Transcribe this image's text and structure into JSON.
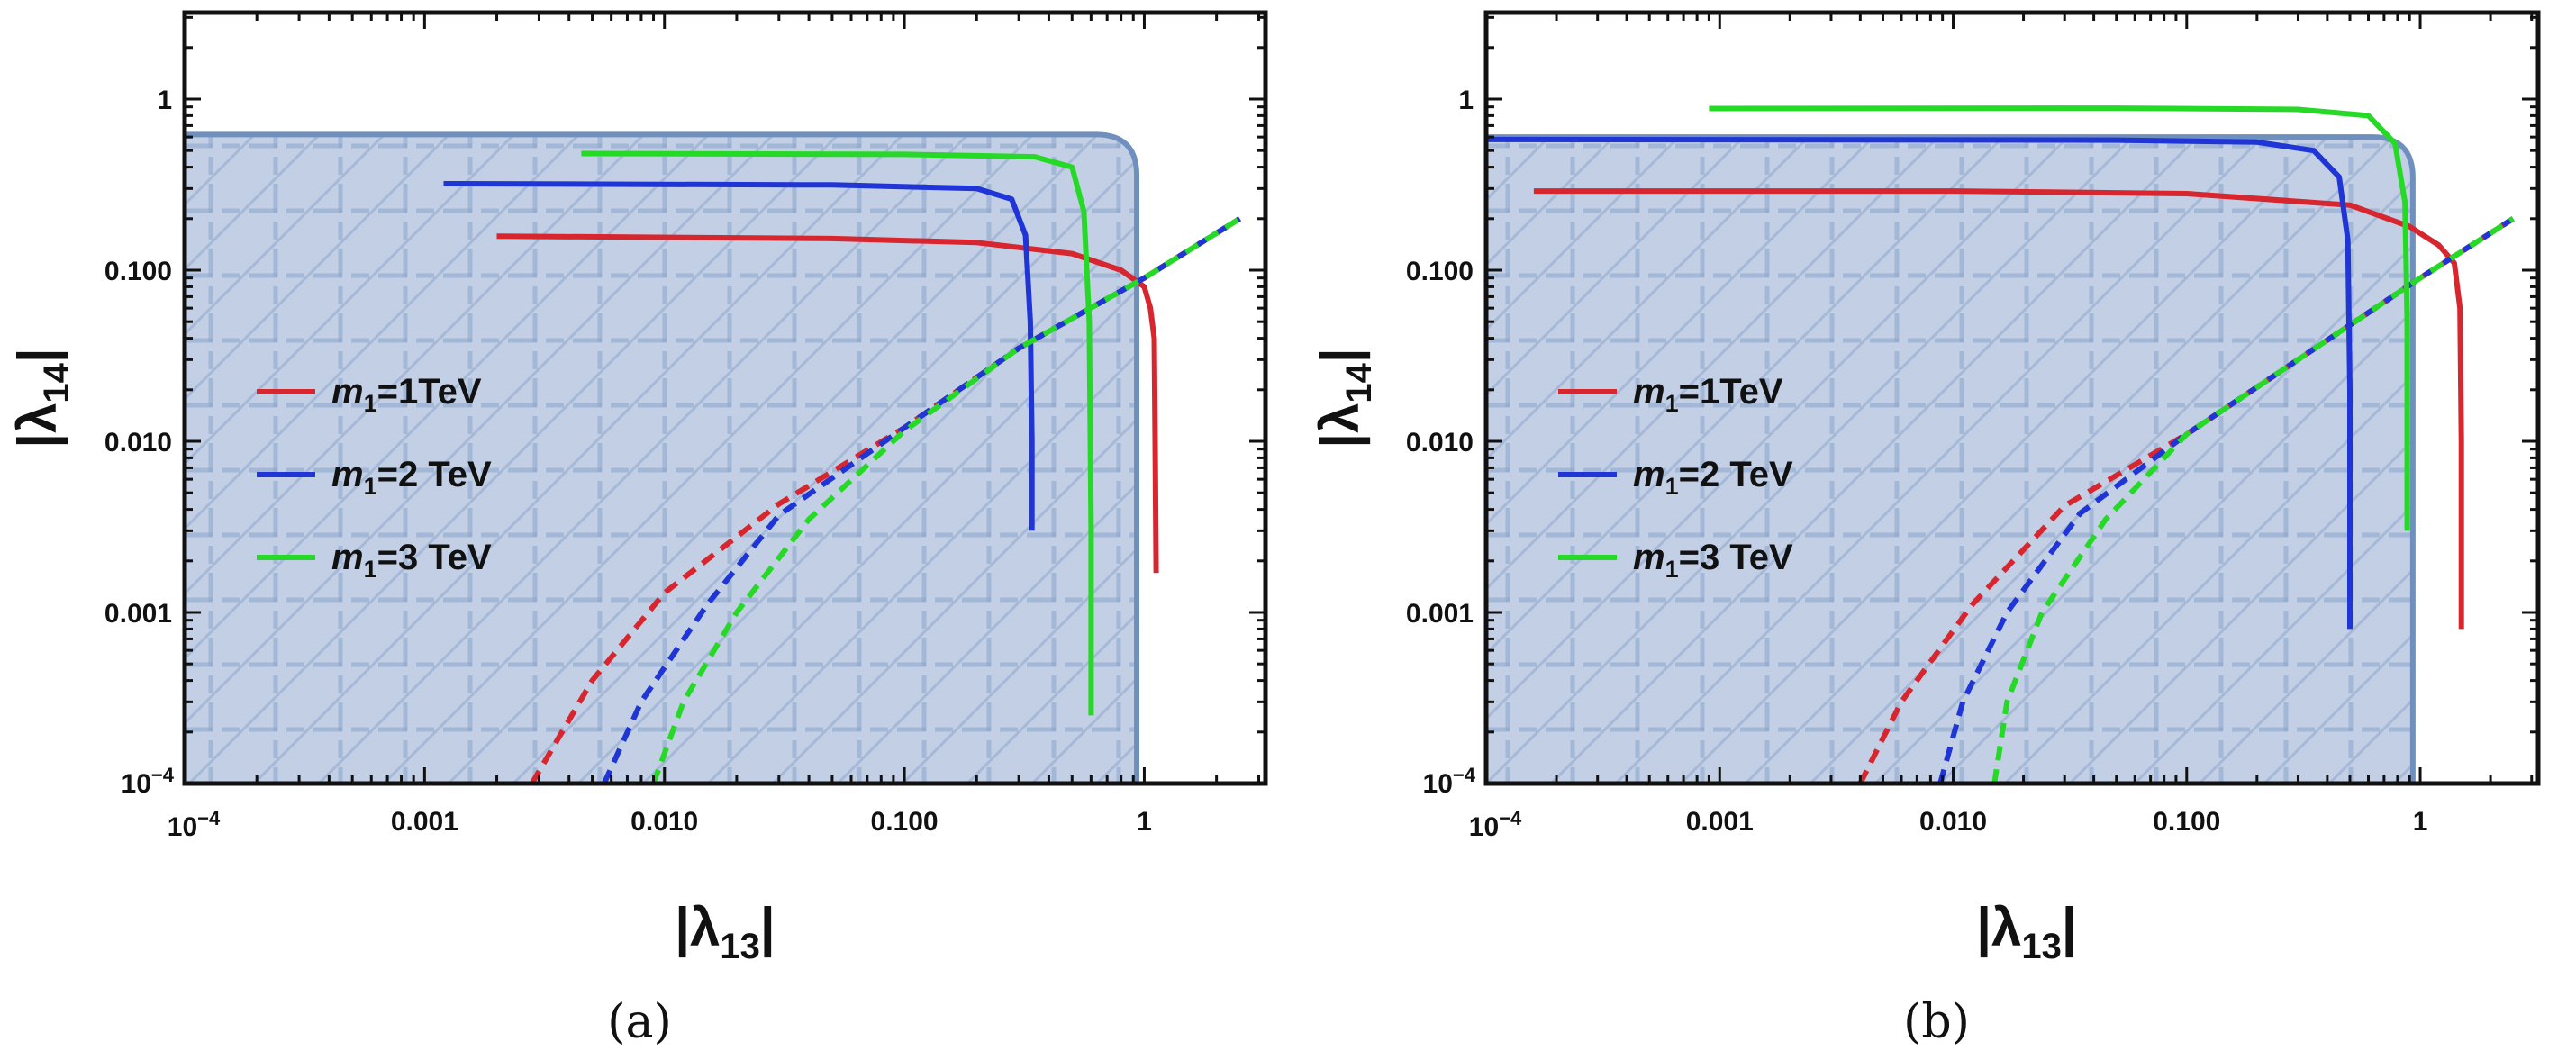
{
  "chart_data": [
    {
      "type": "line",
      "caption": "(a)",
      "xlabel": {
        "base": "|λ",
        "sub": "13",
        "end": "|"
      },
      "ylabel": {
        "base": "|λ",
        "sub": "14",
        "end": "|"
      },
      "xscale": "log",
      "yscale": "log",
      "xlim": [
        0.0001,
        3.2
      ],
      "ylim": [
        0.0001,
        3.2
      ],
      "xticks": [
        {
          "v": 0.001,
          "label": "0.001"
        },
        {
          "v": 0.01,
          "label": "0.010"
        },
        {
          "v": 0.1,
          "label": "0.100"
        },
        {
          "v": 1,
          "label": "1"
        }
      ],
      "yticks": [
        {
          "v": 0.001,
          "label": "0.001"
        },
        {
          "v": 0.01,
          "label": "0.010"
        },
        {
          "v": 0.1,
          "label": "0.100"
        },
        {
          "v": 1,
          "label": "1"
        }
      ],
      "origin_label": {
        "base": "10",
        "exp": "−4"
      },
      "grid": false,
      "legend_position": "center-left",
      "excluded_region": {
        "x_edge": 0.93,
        "y_edge": 0.62,
        "fill": "#b7c7e0",
        "edge_color": "#6f8fbd"
      },
      "series": [
        {
          "name": {
            "pre": "m",
            "sub": "1",
            "post": "=1TeV"
          },
          "color": "#d8262f",
          "solid": [
            [
              0.002,
              0.158
            ],
            [
              0.05,
              0.153
            ],
            [
              0.2,
              0.145
            ],
            [
              0.5,
              0.125
            ],
            [
              0.8,
              0.1
            ],
            [
              1.0,
              0.08
            ],
            [
              1.06,
              0.06
            ],
            [
              1.1,
              0.04
            ],
            [
              1.11,
              0.01
            ],
            [
              1.12,
              0.0017
            ]
          ],
          "dashed": [
            [
              0.0028,
              0.0001
            ],
            [
              0.005,
              0.0004
            ],
            [
              0.01,
              0.0013
            ],
            [
              0.03,
              0.0043
            ],
            [
              0.1,
              0.012
            ],
            [
              0.3,
              0.035
            ],
            [
              1,
              0.09
            ],
            [
              2.5,
              0.2
            ]
          ]
        },
        {
          "name": {
            "pre": "m",
            "sub": "1",
            "post": "=2 TeV"
          },
          "color": "#1f35d6",
          "solid": [
            [
              0.0012,
              0.32
            ],
            [
              0.05,
              0.315
            ],
            [
              0.2,
              0.3
            ],
            [
              0.28,
              0.26
            ],
            [
              0.32,
              0.16
            ],
            [
              0.335,
              0.05
            ],
            [
              0.34,
              0.01
            ],
            [
              0.34,
              0.003
            ]
          ],
          "dashed": [
            [
              0.0056,
              0.0001
            ],
            [
              0.008,
              0.0003
            ],
            [
              0.015,
              0.0011
            ],
            [
              0.03,
              0.0037
            ],
            [
              0.1,
              0.012
            ],
            [
              0.3,
              0.035
            ],
            [
              1,
              0.09
            ],
            [
              2.5,
              0.2
            ]
          ]
        },
        {
          "name": {
            "pre": "m",
            "sub": "1",
            "post": "=3 TeV"
          },
          "color": "#26d926",
          "solid": [
            [
              0.0045,
              0.48
            ],
            [
              0.1,
              0.475
            ],
            [
              0.35,
              0.46
            ],
            [
              0.5,
              0.4
            ],
            [
              0.56,
              0.22
            ],
            [
              0.59,
              0.05
            ],
            [
              0.6,
              0.003
            ],
            [
              0.6,
              0.00025
            ]
          ],
          "dashed": [
            [
              0.009,
              0.0001
            ],
            [
              0.012,
              0.0003
            ],
            [
              0.02,
              0.001
            ],
            [
              0.04,
              0.0035
            ],
            [
              0.1,
              0.0115
            ],
            [
              0.3,
              0.035
            ],
            [
              1,
              0.09
            ],
            [
              2.5,
              0.2
            ]
          ]
        }
      ]
    },
    {
      "type": "line",
      "caption": "(b)",
      "xlabel": {
        "base": "|λ",
        "sub": "13",
        "end": "|"
      },
      "ylabel": {
        "base": "|λ",
        "sub": "14",
        "end": "|"
      },
      "xscale": "log",
      "yscale": "log",
      "xlim": [
        0.0001,
        3.2
      ],
      "ylim": [
        0.0001,
        3.2
      ],
      "xticks": [
        {
          "v": 0.001,
          "label": "0.001"
        },
        {
          "v": 0.01,
          "label": "0.010"
        },
        {
          "v": 0.1,
          "label": "0.100"
        },
        {
          "v": 1,
          "label": "1"
        }
      ],
      "yticks": [
        {
          "v": 0.001,
          "label": "0.001"
        },
        {
          "v": 0.01,
          "label": "0.010"
        },
        {
          "v": 0.1,
          "label": "0.100"
        },
        {
          "v": 1,
          "label": "1"
        }
      ],
      "origin_label": {
        "base": "10",
        "exp": "−4"
      },
      "grid": false,
      "legend_position": "center-left",
      "excluded_region": {
        "x_edge": 0.93,
        "y_edge": 0.6,
        "fill": "#b7c7e0",
        "edge_color": "#6f8fbd"
      },
      "series": [
        {
          "name": {
            "pre": "m",
            "sub": "1",
            "post": "=1TeV"
          },
          "color": "#d8262f",
          "solid": [
            [
              0.00016,
              0.29
            ],
            [
              0.01,
              0.29
            ],
            [
              0.1,
              0.28
            ],
            [
              0.5,
              0.24
            ],
            [
              0.9,
              0.18
            ],
            [
              1.2,
              0.14
            ],
            [
              1.4,
              0.11
            ],
            [
              1.48,
              0.06
            ],
            [
              1.5,
              0.01
            ],
            [
              1.5,
              0.0008
            ]
          ],
          "dashed": [
            [
              0.004,
              0.0001
            ],
            [
              0.006,
              0.0003
            ],
            [
              0.012,
              0.0011
            ],
            [
              0.03,
              0.0042
            ],
            [
              0.1,
              0.011
            ],
            [
              0.3,
              0.03
            ],
            [
              1,
              0.09
            ],
            [
              2.5,
              0.2
            ]
          ]
        },
        {
          "name": {
            "pre": "m",
            "sub": "1",
            "post": "=2 TeV"
          },
          "color": "#1f35d6",
          "solid": [
            [
              0.0001,
              0.58
            ],
            [
              0.05,
              0.575
            ],
            [
              0.2,
              0.56
            ],
            [
              0.35,
              0.5
            ],
            [
              0.45,
              0.35
            ],
            [
              0.49,
              0.15
            ],
            [
              0.5,
              0.02
            ],
            [
              0.5,
              0.0008
            ]
          ],
          "dashed": [
            [
              0.0088,
              0.0001
            ],
            [
              0.011,
              0.0003
            ],
            [
              0.017,
              0.001
            ],
            [
              0.035,
              0.0038
            ],
            [
              0.1,
              0.011
            ],
            [
              0.3,
              0.03
            ],
            [
              1,
              0.09
            ],
            [
              2.5,
              0.2
            ]
          ]
        },
        {
          "name": {
            "pre": "m",
            "sub": "1",
            "post": "=3 TeV"
          },
          "color": "#26d926",
          "solid": [
            [
              0.0009,
              0.88
            ],
            [
              0.05,
              0.885
            ],
            [
              0.3,
              0.87
            ],
            [
              0.6,
              0.8
            ],
            [
              0.78,
              0.55
            ],
            [
              0.86,
              0.25
            ],
            [
              0.88,
              0.05
            ],
            [
              0.88,
              0.003
            ]
          ],
          "dashed": [
            [
              0.015,
              0.0001
            ],
            [
              0.017,
              0.0003
            ],
            [
              0.024,
              0.001
            ],
            [
              0.045,
              0.0035
            ],
            [
              0.1,
              0.011
            ],
            [
              0.3,
              0.03
            ],
            [
              1,
              0.09
            ],
            [
              2.5,
              0.2
            ]
          ]
        }
      ]
    }
  ]
}
